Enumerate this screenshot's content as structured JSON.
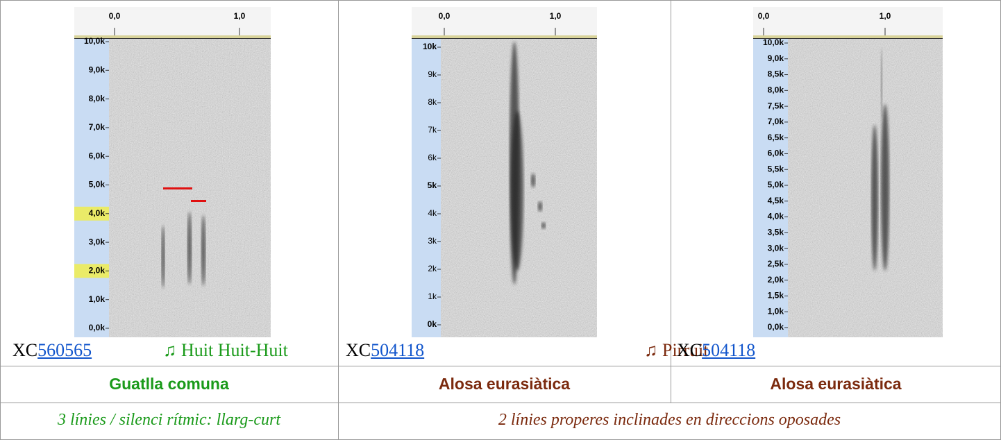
{
  "cells": [
    {
      "x_labels": [
        "0,0",
        "1,0"
      ],
      "y_labels": [
        "10,0k",
        "9,0k",
        "8,0k",
        "7,0k",
        "6,0k",
        "5,0k",
        "4,0k",
        "3,0k",
        "2,0k",
        "1,0k",
        "0,0k"
      ],
      "source_prefix": "XC",
      "source_id": "560565",
      "song": "♫ Huit Huit-Huit"
    },
    {
      "x_labels": [
        "0,0",
        "1,0"
      ],
      "y_labels": [
        "10k",
        "9k",
        "8k",
        "7k",
        "6k",
        "5k",
        "4k",
        "3k",
        "2k",
        "1k",
        "0k"
      ],
      "source_prefix": "XC",
      "source_id": "504118",
      "song": "♫ Pirruit"
    },
    {
      "x_labels": [
        "0,0",
        "1,0"
      ],
      "y_labels": [
        "10,0k",
        "9,0k",
        "8,5k",
        "8,0k",
        "7,5k",
        "7,0k",
        "6,5k",
        "6,0k",
        "5,5k",
        "5,0k",
        "4,5k",
        "4,0k",
        "3,5k",
        "3,0k",
        "2,5k",
        "2,0k",
        "1,5k",
        "1,0k",
        "0,0k"
      ],
      "source_prefix": "XC",
      "source_id": "504118"
    }
  ],
  "species": [
    "Guatlla comuna",
    "Alosa eurasiàtica",
    "Alosa eurasiàtica"
  ],
  "descriptions": [
    "3 línies / silenci rítmic: llarg-curt",
    "2 línies properes inclinades en direccions oposades"
  ]
}
